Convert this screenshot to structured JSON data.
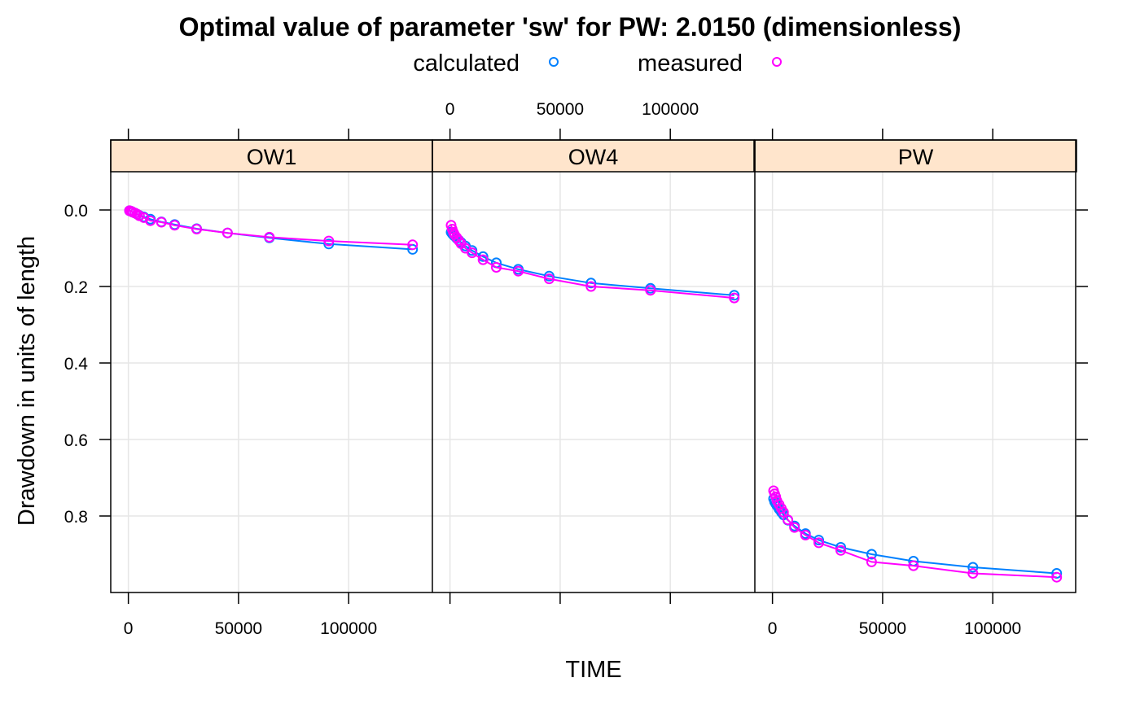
{
  "chart_data": {
    "type": "scatter",
    "title": "Optimal value of parameter 'sw' for PW: 2.0150 (dimensionless)",
    "xlabel": "TIME",
    "ylabel": "Drawdown in units of length",
    "xlim": [
      -8000,
      138000
    ],
    "ylim": [
      -0.1,
      1.0
    ],
    "y_reversed": true,
    "x_ticks": [
      0,
      50000,
      100000
    ],
    "y_ticks": [
      0.0,
      0.2,
      0.4,
      0.6,
      0.8
    ],
    "y_tick_labels": [
      "0.0",
      "0.2",
      "0.4",
      "0.6",
      "0.8"
    ],
    "x_tick_labels": [
      "0",
      "50000",
      "100000"
    ],
    "grid": true,
    "legend_position": "top",
    "series_style": [
      {
        "name": "calculated",
        "color": "#0080ff"
      },
      {
        "name": "measured",
        "color": "#ff00ff"
      }
    ],
    "panels": [
      {
        "name": "OW1",
        "x": [
          500,
          1000,
          1500,
          2000,
          3000,
          4000,
          5000,
          7000,
          10000,
          15000,
          21000,
          31000,
          45000,
          64000,
          91000,
          129000
        ],
        "calculated": [
          0.002,
          0.003,
          0.004,
          0.006,
          0.008,
          0.011,
          0.014,
          0.018,
          0.024,
          0.031,
          0.038,
          0.049,
          0.06,
          0.073,
          0.089,
          0.103
        ],
        "measured": [
          0.002,
          0.003,
          0.004,
          0.006,
          0.008,
          0.011,
          0.015,
          0.02,
          0.028,
          0.032,
          0.04,
          0.05,
          0.06,
          0.071,
          0.081,
          0.091
        ]
      },
      {
        "name": "OW4",
        "x": [
          500,
          1000,
          1500,
          2000,
          3000,
          4000,
          5000,
          7000,
          10000,
          15000,
          21000,
          31000,
          45000,
          64000,
          91000,
          129000
        ],
        "calculated": [
          0.058,
          0.062,
          0.065,
          0.068,
          0.074,
          0.079,
          0.085,
          0.094,
          0.106,
          0.122,
          0.138,
          0.155,
          0.173,
          0.191,
          0.205,
          0.223
        ],
        "measured": [
          0.04,
          0.05,
          0.058,
          0.064,
          0.072,
          0.08,
          0.088,
          0.1,
          0.112,
          0.13,
          0.15,
          0.16,
          0.18,
          0.2,
          0.21,
          0.23
        ]
      },
      {
        "name": "PW",
        "x": [
          500,
          1000,
          1500,
          2000,
          3000,
          4000,
          5000,
          7000,
          10000,
          15000,
          21000,
          31000,
          45000,
          64000,
          91000,
          129000
        ],
        "calculated": [
          0.755,
          0.763,
          0.768,
          0.773,
          0.782,
          0.79,
          0.797,
          0.811,
          0.826,
          0.846,
          0.863,
          0.882,
          0.9,
          0.918,
          0.934,
          0.95
        ],
        "measured": [
          0.734,
          0.742,
          0.75,
          0.76,
          0.77,
          0.78,
          0.79,
          0.81,
          0.83,
          0.85,
          0.87,
          0.89,
          0.92,
          0.93,
          0.95,
          0.96
        ]
      }
    ]
  }
}
